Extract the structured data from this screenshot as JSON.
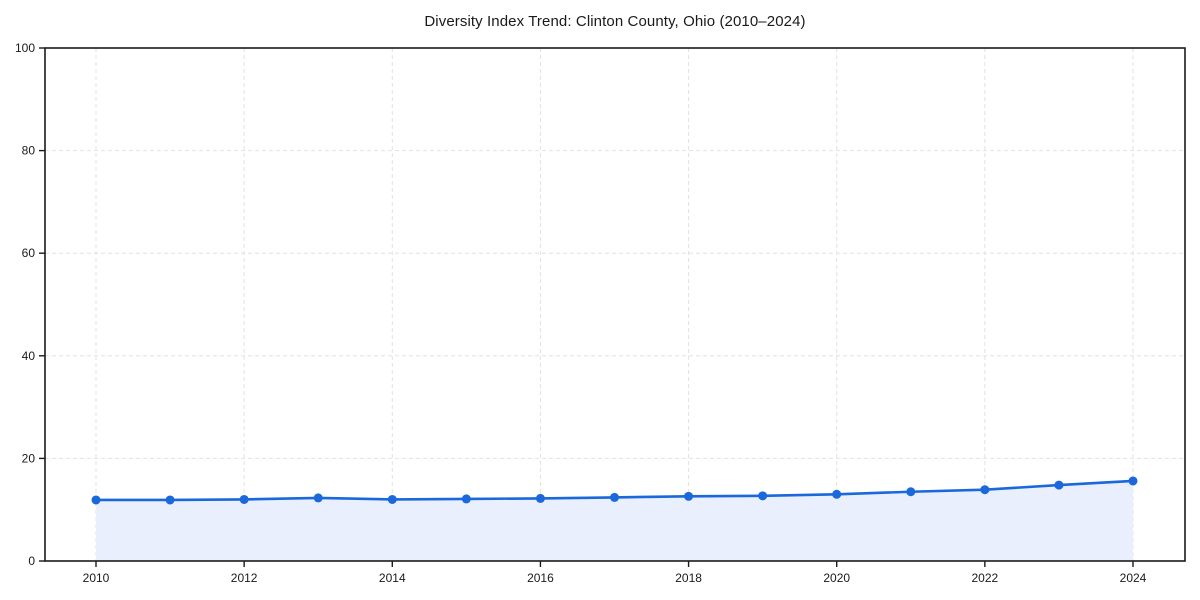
{
  "chart_data": {
    "type": "line",
    "title": "Diversity Index Trend: Clinton County, Ohio (2010–2024)",
    "x": [
      2010,
      2011,
      2012,
      2013,
      2014,
      2015,
      2016,
      2017,
      2018,
      2019,
      2020,
      2021,
      2022,
      2023,
      2024
    ],
    "series": [
      {
        "name": "Diversity Index",
        "values": [
          11.9,
          11.9,
          12.0,
          12.3,
          12.0,
          12.1,
          12.2,
          12.4,
          12.6,
          12.7,
          13.0,
          13.5,
          13.9,
          14.8,
          15.6
        ]
      }
    ],
    "xlabel": "",
    "ylabel": "",
    "ylim": [
      0,
      100
    ],
    "yticks": [
      0,
      20,
      40,
      60,
      80,
      100
    ],
    "xticks": [
      2010,
      2012,
      2014,
      2016,
      2018,
      2020,
      2022,
      2024
    ],
    "grid": "dashed",
    "legend_position": "none",
    "area_fill": true,
    "marker": "circle",
    "colors": {
      "line": "#1a68db",
      "marker": "#1a68db",
      "fill": "#e9effc",
      "grid": "#e2e2e2",
      "axis": "#1a1a1a",
      "text": "#1a1a1a",
      "background": "#ffffff"
    }
  }
}
